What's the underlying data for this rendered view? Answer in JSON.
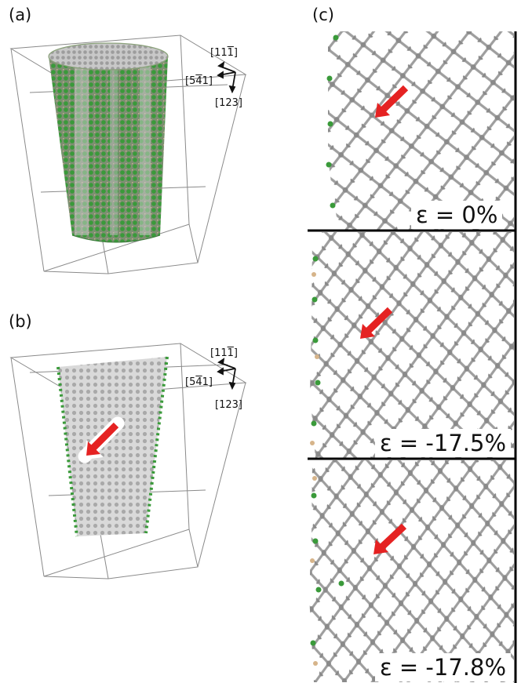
{
  "panels": {
    "a": {
      "label": "(a)"
    },
    "b": {
      "label": "(b)"
    },
    "c": {
      "label": "(c)"
    }
  },
  "axes_a": [
    {
      "pre": "[11",
      "bar": "1",
      "post": "]"
    },
    {
      "pre": "[5",
      "bar": "4",
      "mid": "1",
      "post": "]"
    },
    {
      "pre": "[123]",
      "bar": "",
      "post": ""
    }
  ],
  "axes_b": [
    {
      "pre": "[11",
      "bar": "1",
      "post": "]"
    },
    {
      "pre": "[5",
      "bar": "4",
      "mid": "1",
      "post": "]"
    },
    {
      "pre": "[123]",
      "bar": "",
      "post": ""
    }
  ],
  "strain_labels": [
    "ε = 0%",
    "ε = -17.5%",
    "ε = -17.8%"
  ],
  "colors": {
    "atom_gray": "#b4b4b4",
    "atom_green": "#3a9a3a",
    "atom_tan": "#d6b48a",
    "arrow_red": "#e52222",
    "frame": "#8a8a8a"
  }
}
